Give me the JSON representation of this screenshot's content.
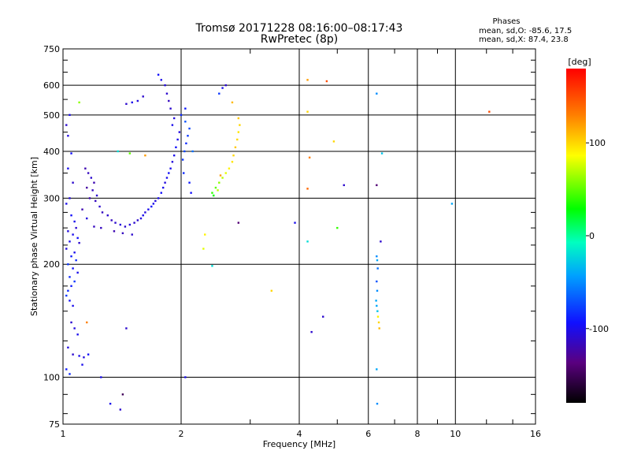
{
  "chart_data": {
    "type": "scatter",
    "title": "Tromsø 20171228 08:16:00–08:17:43",
    "subtitle": "RwPretec (8p)",
    "info_header": "Phases",
    "info_lines": [
      "mean, sd,O: -85.6, 17.5",
      "mean, sd,X: 87.4, 23.8"
    ],
    "xlabel": "Frequency [MHz]",
    "ylabel": "Stationary phase Virtual Height [km]",
    "x_scale": "log2",
    "y_scale": "log",
    "xlim": [
      1,
      16
    ],
    "ylim": [
      75,
      750
    ],
    "x_ticks": [
      1,
      2,
      4,
      6,
      8,
      10,
      16
    ],
    "y_ticks": [
      75,
      100,
      200,
      300,
      400,
      500,
      600,
      750
    ],
    "grid": true,
    "colorbar": {
      "label": "[deg]",
      "range": [
        -180,
        180
      ],
      "ticks": [
        100,
        0,
        -100
      ]
    },
    "series": [
      {
        "points": [
          [
            1.02,
            470,
            -110
          ],
          [
            1.03,
            440,
            -105
          ],
          [
            1.04,
            500,
            -100
          ],
          [
            1.05,
            395,
            -95
          ],
          [
            1.03,
            360,
            -100
          ],
          [
            1.06,
            330,
            -110
          ],
          [
            1.04,
            300,
            -105
          ],
          [
            1.02,
            290,
            -100
          ],
          [
            1.05,
            270,
            -95
          ],
          [
            1.07,
            260,
            -100
          ],
          [
            1.08,
            250,
            -110
          ],
          [
            1.03,
            245,
            -105
          ],
          [
            1.06,
            240,
            -100
          ],
          [
            1.09,
            235,
            -95
          ],
          [
            1.04,
            230,
            -100
          ],
          [
            1.1,
            228,
            -110
          ],
          [
            1.02,
            220,
            -105
          ],
          [
            1.07,
            215,
            -100
          ],
          [
            1.05,
            210,
            -90
          ],
          [
            1.08,
            205,
            -85
          ],
          [
            1.03,
            200,
            -80
          ],
          [
            1.06,
            195,
            -95
          ],
          [
            1.09,
            190,
            -100
          ],
          [
            1.04,
            185,
            -85
          ],
          [
            1.07,
            180,
            -80
          ],
          [
            1.05,
            175,
            -90
          ],
          [
            1.03,
            170,
            -85
          ],
          [
            1.02,
            165,
            -80
          ],
          [
            1.04,
            160,
            -95
          ],
          [
            1.06,
            155,
            -100
          ],
          [
            1.05,
            140,
            -110
          ],
          [
            1.07,
            135,
            -105
          ],
          [
            1.09,
            130,
            -100
          ],
          [
            1.03,
            120,
            -105
          ],
          [
            1.06,
            115,
            -110
          ],
          [
            1.1,
            114,
            -100
          ],
          [
            1.13,
            113,
            -105
          ],
          [
            1.16,
            115,
            -95
          ],
          [
            1.02,
            105,
            -90
          ],
          [
            1.04,
            102,
            -85
          ],
          [
            1.12,
            108,
            -100
          ],
          [
            1.14,
            360,
            -120
          ],
          [
            1.16,
            350,
            -115
          ],
          [
            1.18,
            340,
            -110
          ],
          [
            1.2,
            330,
            -120
          ],
          [
            1.15,
            320,
            -125
          ],
          [
            1.19,
            315,
            -115
          ],
          [
            1.22,
            305,
            -110
          ],
          [
            1.17,
            300,
            -120
          ],
          [
            1.21,
            295,
            -115
          ],
          [
            1.24,
            285,
            -110
          ],
          [
            1.12,
            280,
            -120
          ],
          [
            1.26,
            275,
            -115
          ],
          [
            1.3,
            270,
            -110
          ],
          [
            1.15,
            265,
            -105
          ],
          [
            1.33,
            262,
            -115
          ],
          [
            1.36,
            258,
            -110
          ],
          [
            1.4,
            255,
            -105
          ],
          [
            1.2,
            252,
            -115
          ],
          [
            1.44,
            252,
            -110
          ],
          [
            1.48,
            255,
            -105
          ],
          [
            1.52,
            258,
            -110
          ],
          [
            1.25,
            250,
            -115
          ],
          [
            1.55,
            262,
            -110
          ],
          [
            1.58,
            265,
            -105
          ],
          [
            1.35,
            245,
            -120
          ],
          [
            1.42,
            242,
            -115
          ],
          [
            1.5,
            240,
            -110
          ],
          [
            1.6,
            270,
            -100
          ],
          [
            1.62,
            275,
            -105
          ],
          [
            1.65,
            280,
            -100
          ],
          [
            1.68,
            285,
            -95
          ],
          [
            1.7,
            290,
            -100
          ],
          [
            1.72,
            295,
            -105
          ],
          [
            1.75,
            300,
            -100
          ],
          [
            1.78,
            310,
            -95
          ],
          [
            1.8,
            320,
            -100
          ],
          [
            1.82,
            330,
            -105
          ],
          [
            1.84,
            340,
            -100
          ],
          [
            1.86,
            350,
            -95
          ],
          [
            1.88,
            360,
            -100
          ],
          [
            1.9,
            375,
            -105
          ],
          [
            1.92,
            390,
            -100
          ],
          [
            1.94,
            410,
            -95
          ],
          [
            1.96,
            430,
            -100
          ],
          [
            1.98,
            450,
            -105
          ],
          [
            1.9,
            470,
            -100
          ],
          [
            1.92,
            490,
            -105
          ],
          [
            1.88,
            520,
            -110
          ],
          [
            1.86,
            545,
            -115
          ],
          [
            1.84,
            570,
            -110
          ],
          [
            1.82,
            600,
            -105
          ],
          [
            1.78,
            620,
            -100
          ],
          [
            1.75,
            640,
            -95
          ],
          [
            1.6,
            560,
            -110
          ],
          [
            1.55,
            545,
            -105
          ],
          [
            1.5,
            540,
            -100
          ],
          [
            1.45,
            535,
            -110
          ],
          [
            2.02,
            380,
            -80
          ],
          [
            2.04,
            400,
            -75
          ],
          [
            2.06,
            420,
            -85
          ],
          [
            2.08,
            440,
            -80
          ],
          [
            2.1,
            460,
            -75
          ],
          [
            2.03,
            350,
            -85
          ],
          [
            2.05,
            480,
            -70
          ],
          [
            2.1,
            330,
            -90
          ],
          [
            2.12,
            310,
            -95
          ],
          [
            2.14,
            400,
            -60
          ],
          [
            2.0,
            500,
            -85
          ],
          [
            2.05,
            520,
            -90
          ],
          [
            2.4,
            310,
            40
          ],
          [
            2.45,
            320,
            50
          ],
          [
            2.5,
            330,
            60
          ],
          [
            2.55,
            340,
            70
          ],
          [
            2.6,
            350,
            80
          ],
          [
            2.65,
            360,
            90
          ],
          [
            2.7,
            375,
            95
          ],
          [
            2.72,
            390,
            100
          ],
          [
            2.75,
            410,
            105
          ],
          [
            2.78,
            430,
            100
          ],
          [
            2.8,
            450,
            95
          ],
          [
            2.82,
            470,
            100
          ],
          [
            2.8,
            490,
            105
          ],
          [
            2.42,
            305,
            30
          ],
          [
            2.48,
            315,
            70
          ],
          [
            2.52,
            345,
            120
          ],
          [
            2.3,
            240,
            90
          ],
          [
            2.28,
            220,
            80
          ],
          [
            2.6,
            600,
            -110
          ],
          [
            2.55,
            590,
            -100
          ],
          [
            2.5,
            570,
            -80
          ],
          [
            2.7,
            540,
            110
          ],
          [
            1.1,
            540,
            60
          ],
          [
            1.48,
            395,
            50
          ],
          [
            1.62,
            390,
            120
          ],
          [
            1.38,
            400,
            -20
          ],
          [
            1.15,
            140,
            130
          ],
          [
            1.45,
            135,
            -110
          ],
          [
            1.25,
            100,
            -100
          ],
          [
            1.32,
            85,
            -100
          ],
          [
            1.4,
            82,
            -110
          ],
          [
            1.42,
            90,
            -150
          ],
          [
            2.05,
            100,
            -100
          ],
          [
            2.4,
            198,
            -20
          ],
          [
            2.8,
            258,
            -140
          ],
          [
            3.9,
            258,
            -100
          ],
          [
            4.2,
            620,
            120
          ],
          [
            4.2,
            510,
            100
          ],
          [
            4.25,
            385,
            130
          ],
          [
            4.2,
            318,
            140
          ],
          [
            4.3,
            132,
            -110
          ],
          [
            4.2,
            230,
            -20
          ],
          [
            4.6,
            145,
            -110
          ],
          [
            4.7,
            615,
            150
          ],
          [
            4.9,
            425,
            100
          ],
          [
            5.0,
            250,
            40
          ],
          [
            5.2,
            325,
            -110
          ],
          [
            3.4,
            170,
            100
          ],
          [
            6.3,
            570,
            -50
          ],
          [
            6.3,
            325,
            -140
          ],
          [
            6.5,
            395,
            -30
          ],
          [
            6.3,
            210,
            -50
          ],
          [
            6.32,
            205,
            -40
          ],
          [
            6.34,
            195,
            -60
          ],
          [
            6.3,
            180,
            -70
          ],
          [
            6.32,
            170,
            -50
          ],
          [
            6.28,
            160,
            -40
          ],
          [
            6.3,
            155,
            -40
          ],
          [
            6.33,
            150,
            -30
          ],
          [
            6.35,
            145,
            90
          ],
          [
            6.38,
            140,
            100
          ],
          [
            6.4,
            135,
            110
          ],
          [
            6.45,
            230,
            -110
          ],
          [
            6.3,
            105,
            -40
          ],
          [
            6.32,
            85,
            -50
          ],
          [
            9.8,
            290,
            -40
          ],
          [
            12.2,
            510,
            150
          ]
        ]
      }
    ]
  }
}
